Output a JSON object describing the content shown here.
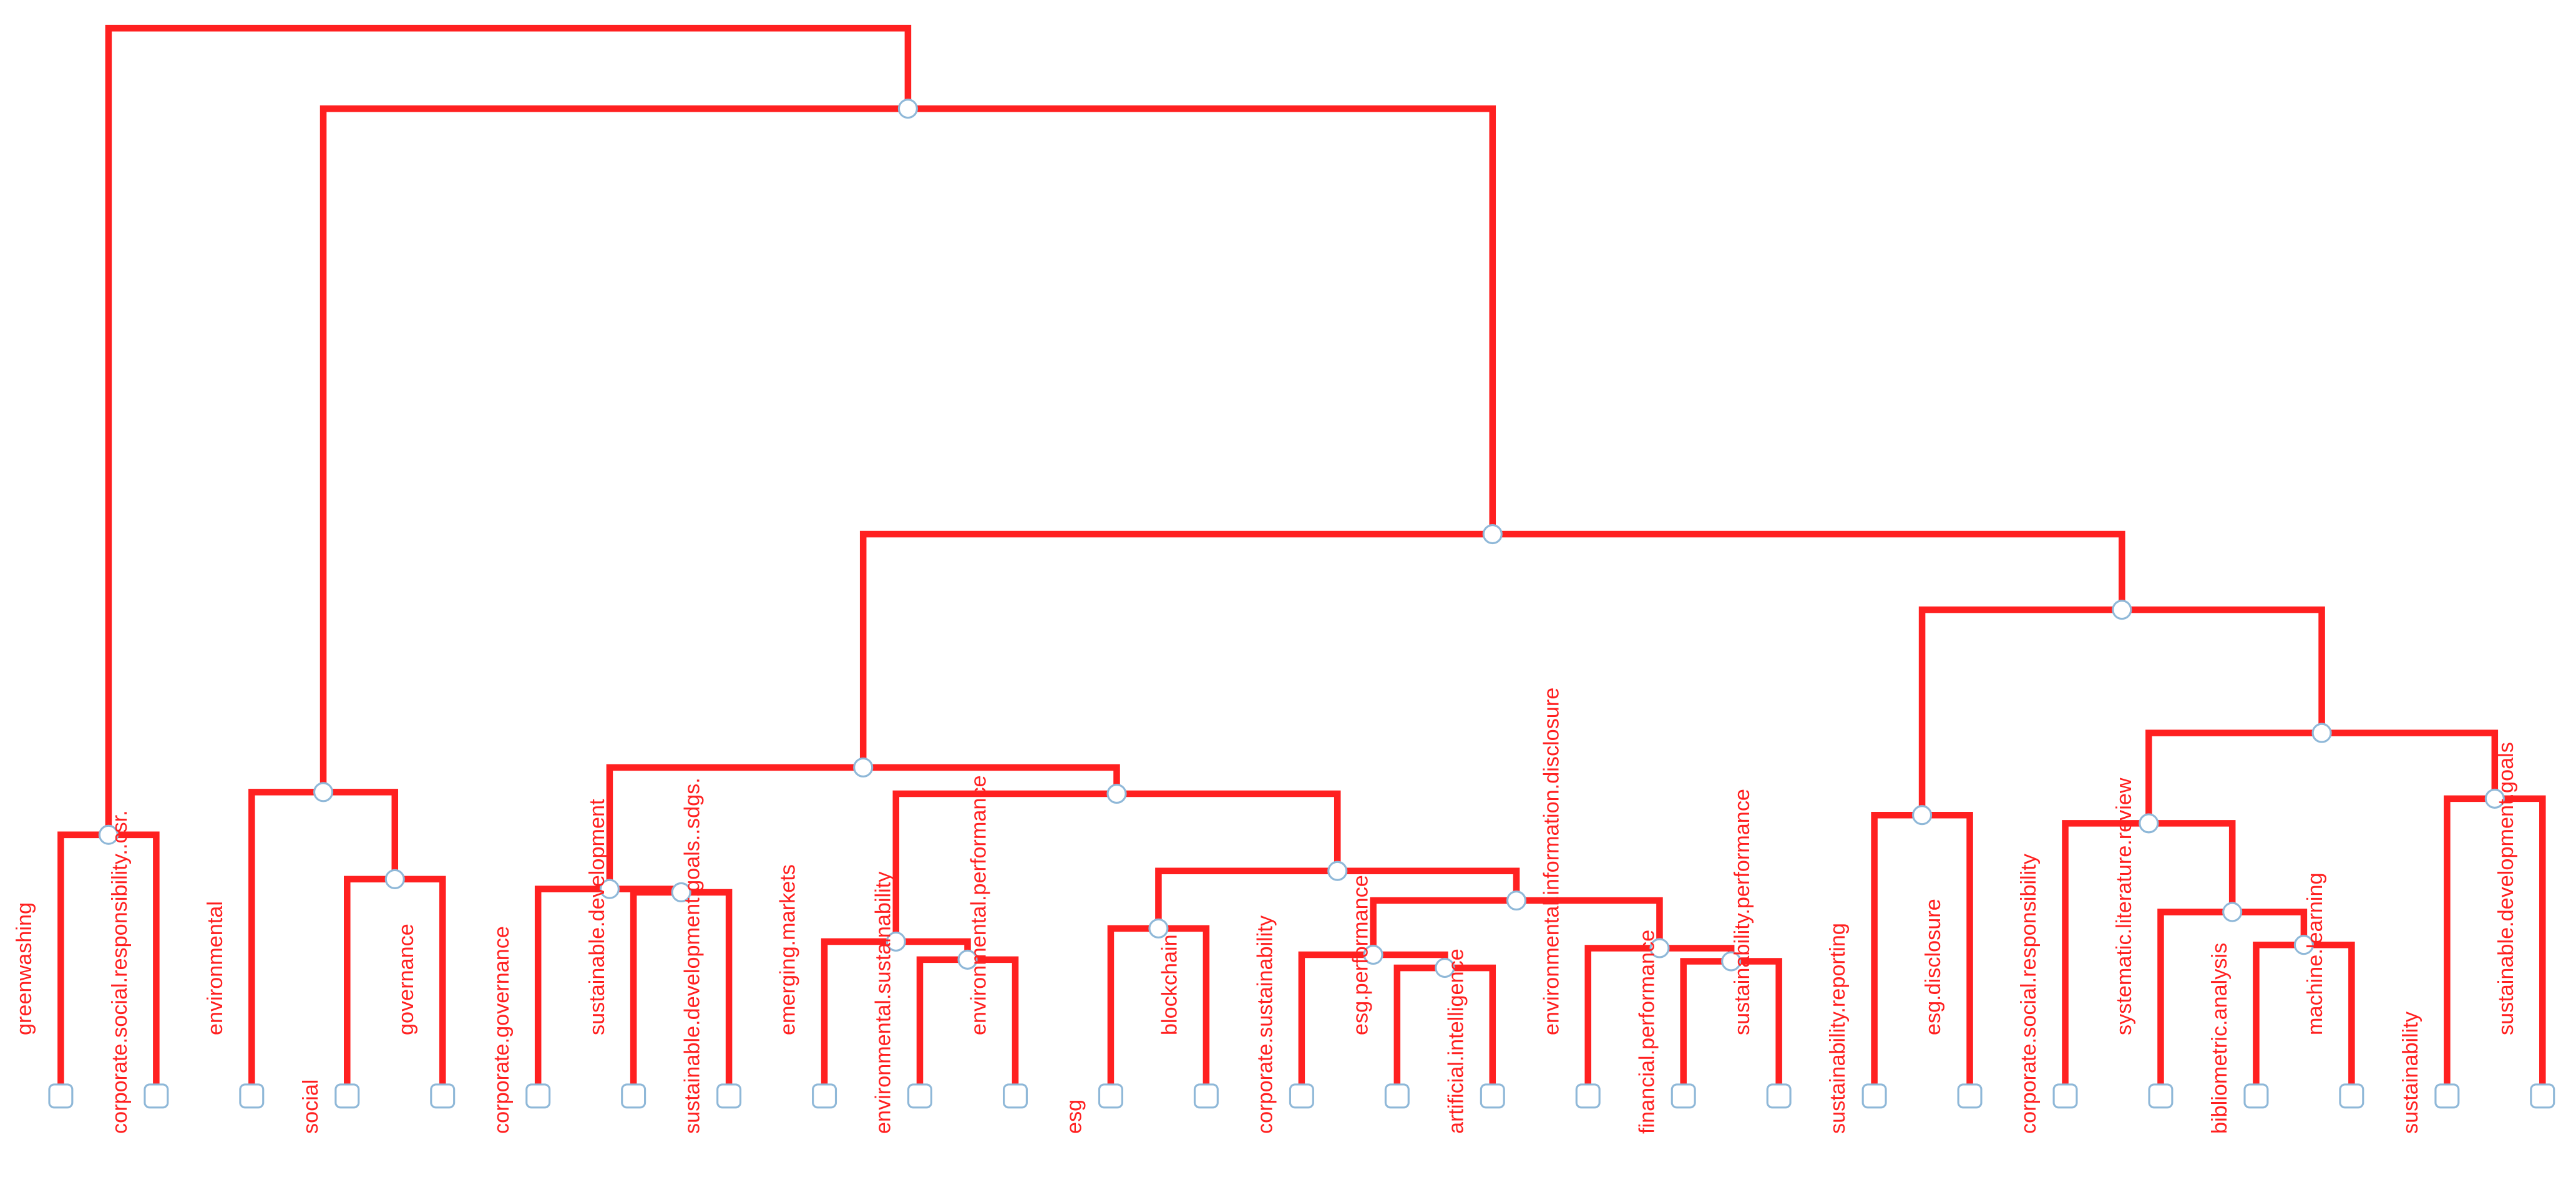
{
  "leaves": [
    "greenwashing",
    "corporate.social.responsibility..csr.",
    "environmental",
    "social",
    "governance",
    "corporate.governance",
    "sustainable.development",
    "sustainable.development.goals..sdgs.",
    "emerging.markets",
    "environmental.sustainability",
    "environmental.performance",
    "esg",
    "blockchain",
    "corporate.sustainability",
    "esg.performance",
    "artificial.intelligence",
    "environmental.information.disclosure",
    "financial.performance",
    "sustainability.performance",
    "sustainability.reporting",
    "esg.disclosure",
    "corporate.social.responsibility",
    "systematic.literature.review",
    "bibliometric.analysis",
    "machine.learning",
    "sustainability",
    "sustainable.development.goals"
  ]
}
